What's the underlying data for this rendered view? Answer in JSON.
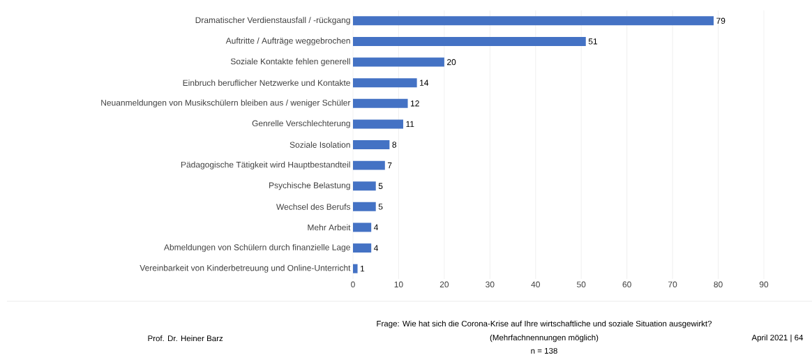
{
  "chart_data": {
    "type": "bar",
    "orientation": "horizontal",
    "categories": [
      "Dramatischer Verdienstausfall / -rückgang",
      "Auftritte / Aufträge weggebrochen",
      "Soziale Kontakte fehlen generell",
      "Einbruch beruflicher Netzwerke und Kontakte",
      "Neuanmeldungen von Musikschülern bleiben aus / weniger Schüler",
      "Genrelle Verschlechterung",
      "Soziale Isolation",
      "Pädagogische Tätigkeit wird Hauptbestandteil",
      "Psychische Belastung",
      "Wechsel des Berufs",
      "Mehr Arbeit",
      "Abmeldungen von Schülern durch finanzielle Lage",
      "Vereinbarkeit von Kinderbetreuung und Online-Unterricht"
    ],
    "values": [
      79,
      51,
      20,
      14,
      12,
      11,
      8,
      7,
      5,
      5,
      4,
      4,
      1
    ],
    "color": "#4472c4",
    "data_labels": true,
    "grid": "x",
    "xlim": [
      0,
      90
    ],
    "xticks": [
      0,
      10,
      20,
      30,
      40,
      50,
      60,
      70,
      80,
      90
    ],
    "annotations": [
      "Prof. Dr. Heiner Barz",
      "Frage: Wie hat sich die Corona-Krise auf Ihre wirtschaftliche und soziale Situation ausgewirkt?",
      "(Mehrfachnennungen möglich)",
      "n = 138",
      "April 2021 | 64"
    ]
  }
}
